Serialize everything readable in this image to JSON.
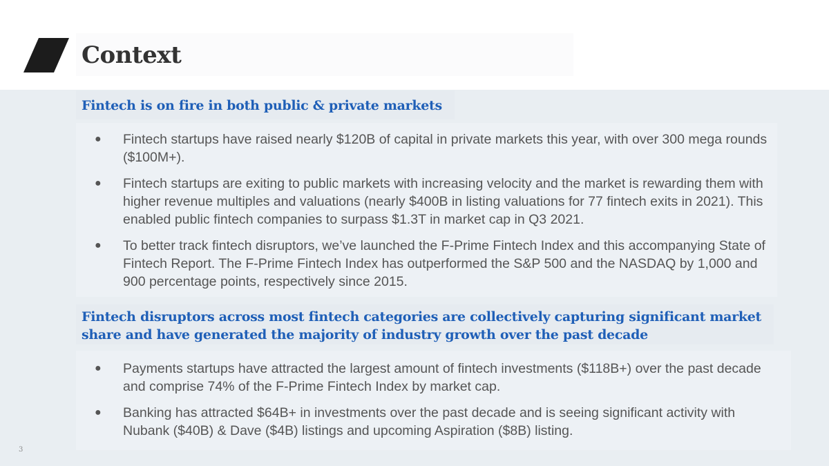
{
  "slide": {
    "title": "Context",
    "page_number": "3",
    "accent_color": "#1f5fb7",
    "logo_icon": "slanted-parallelogram-icon"
  },
  "sections": [
    {
      "heading": "Fintech is on fire in both public & private markets",
      "bullets": [
        "Fintech startups have raised nearly $120B of capital in private markets this year, with over 300 mega rounds ($100M+).",
        "Fintech startups are exiting to public markets with increasing velocity and the market is rewarding them with higher revenue multiples and valuations (nearly $400B in listing valuations for 77 fintech exits in 2021). This enabled public fintech companies to surpass $1.3T in market cap in Q3 2021.",
        "To better track fintech disruptors, we’ve launched the F-Prime Fintech Index and this accompanying State of Fintech Report. The F-Prime Fintech Index has outperformed the S&P 500 and the NASDAQ by 1,000 and 900 percentage points, respectively since 2015."
      ]
    },
    {
      "heading": "Fintech disruptors across most fintech categories are collectively capturing significant market share and have generated the majority of industry growth over the past decade",
      "bullets": [
        "Payments startups have attracted the largest amount of fintech investments ($118B+) over the past decade and comprise 74% of the F-Prime Fintech Index by market cap.",
        "Banking has attracted $64B+ in investments over the past decade and is seeing significant activity with Nubank ($40B) & Dave ($4B) listings and upcoming Aspiration ($8B) listing."
      ]
    }
  ],
  "bullet_glyph": "●"
}
